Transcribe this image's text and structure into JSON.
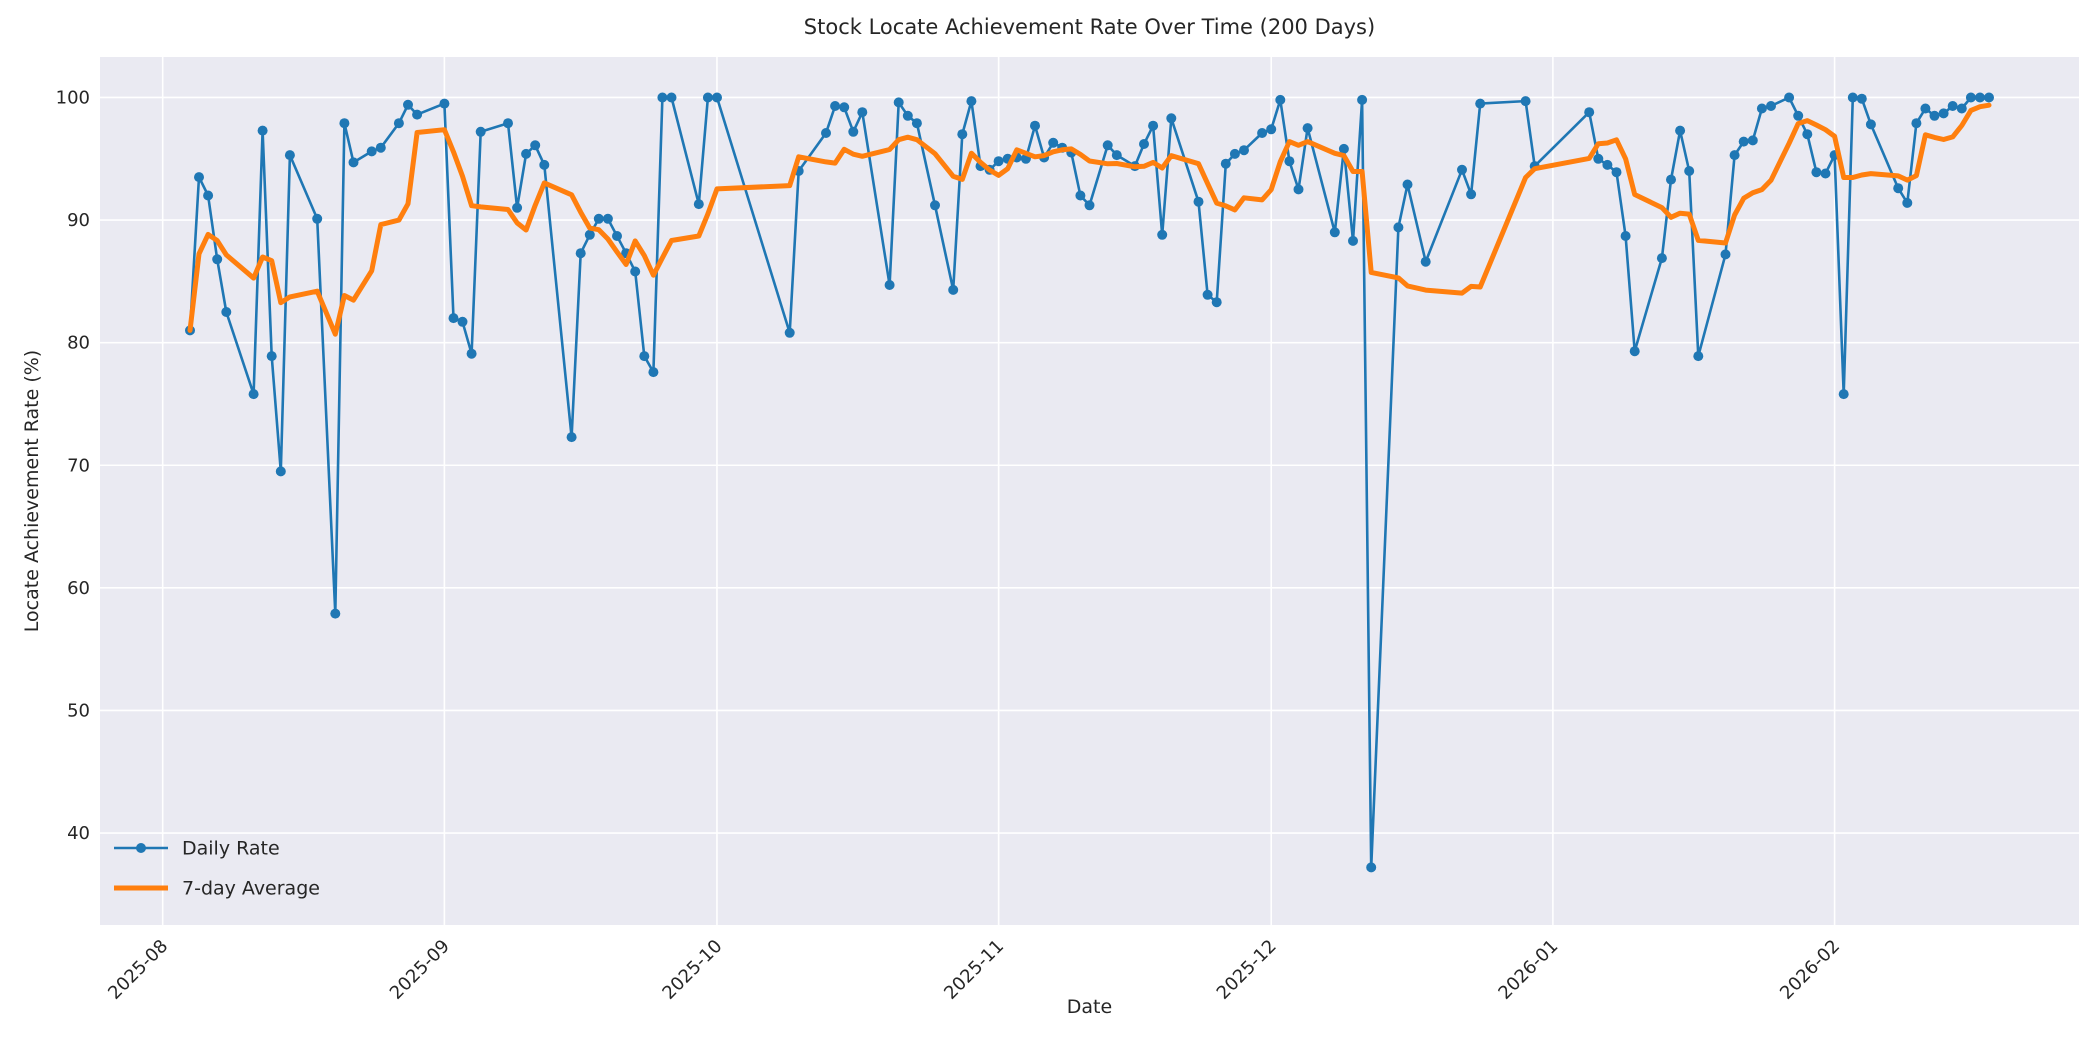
{
  "chart_data": {
    "type": "line",
    "title": "Stock Locate Achievement Rate Over Time (200 Days)",
    "xlabel": "Date",
    "ylabel": "Locate Achievement Rate (%)",
    "grid": true,
    "legend_position": "lower left",
    "plot_bg": "#eaeaf2",
    "grid_color": "#ffffff",
    "text_color": "#262626",
    "yticks": [
      40,
      50,
      60,
      70,
      80,
      90,
      100
    ],
    "ylim": [
      32.5,
      103.3
    ],
    "xtick_labels": [
      "2025-08",
      "2025-09",
      "2025-10",
      "2025-11",
      "2025-12",
      "2026-01",
      "2026-02"
    ],
    "xtick_month_starts": [
      "2025-08-01",
      "2025-09-01",
      "2025-10-01",
      "2025-11-01",
      "2025-12-01",
      "2026-01-01",
      "2026-02-01"
    ],
    "series": [
      {
        "name": "Daily Rate",
        "color": "#1f77b4",
        "marker": "circle"
      },
      {
        "name": "7-day Average",
        "color": "#ff7f0e",
        "derived": "rolling_mean",
        "window": 7
      }
    ],
    "dates": [
      "2025-08-04",
      "2025-08-05",
      "2025-08-06",
      "2025-08-07",
      "2025-08-08",
      "2025-08-11",
      "2025-08-12",
      "2025-08-13",
      "2025-08-14",
      "2025-08-15",
      "2025-08-18",
      "2025-08-20",
      "2025-08-21",
      "2025-08-22",
      "2025-08-24",
      "2025-08-25",
      "2025-08-27",
      "2025-08-28",
      "2025-08-29",
      "2025-09-01",
      "2025-09-02",
      "2025-09-03",
      "2025-09-04",
      "2025-09-05",
      "2025-09-08",
      "2025-09-09",
      "2025-09-10",
      "2025-09-11",
      "2025-09-12",
      "2025-09-15",
      "2025-09-16",
      "2025-09-17",
      "2025-09-18",
      "2025-09-19",
      "2025-09-20",
      "2025-09-21",
      "2025-09-22",
      "2025-09-23",
      "2025-09-24",
      "2025-09-25",
      "2025-09-26",
      "2025-09-29",
      "2025-09-30",
      "2025-10-01",
      "2025-10-09",
      "2025-10-10",
      "2025-10-13",
      "2025-10-14",
      "2025-10-15",
      "2025-10-16",
      "2025-10-17",
      "2025-10-20",
      "2025-10-21",
      "2025-10-22",
      "2025-10-23",
      "2025-10-25",
      "2025-10-27",
      "2025-10-28",
      "2025-10-29",
      "2025-10-30",
      "2025-10-31",
      "2025-11-01",
      "2025-11-02",
      "2025-11-03",
      "2025-11-04",
      "2025-11-05",
      "2025-11-06",
      "2025-11-07",
      "2025-11-08",
      "2025-11-09",
      "2025-11-10",
      "2025-11-11",
      "2025-11-13",
      "2025-11-14",
      "2025-11-16",
      "2025-11-17",
      "2025-11-18",
      "2025-11-19",
      "2025-11-20",
      "2025-11-23",
      "2025-11-24",
      "2025-11-25",
      "2025-11-26",
      "2025-11-27",
      "2025-11-28",
      "2025-11-30",
      "2025-12-01",
      "2025-12-02",
      "2025-12-03",
      "2025-12-04",
      "2025-12-05",
      "2025-12-08",
      "2025-12-09",
      "2025-12-10",
      "2025-12-11",
      "2025-12-12",
      "2025-12-15",
      "2025-12-16",
      "2025-12-18",
      "2025-12-22",
      "2025-12-23",
      "2025-12-24",
      "2025-12-29",
      "2025-12-30",
      "2026-01-05",
      "2026-01-06",
      "2026-01-07",
      "2026-01-08",
      "2026-01-09",
      "2026-01-10",
      "2026-01-13",
      "2026-01-14",
      "2026-01-15",
      "2026-01-16",
      "2026-01-17",
      "2026-01-20",
      "2026-01-21",
      "2026-01-22",
      "2026-01-23",
      "2026-01-24",
      "2026-01-25",
      "2026-01-27",
      "2026-01-28",
      "2026-01-29",
      "2026-01-30",
      "2026-01-31",
      "2026-02-01",
      "2026-02-02",
      "2026-02-03",
      "2026-02-04",
      "2026-02-05",
      "2026-02-08",
      "2026-02-09",
      "2026-02-10",
      "2026-02-11",
      "2026-02-12",
      "2026-02-13",
      "2026-02-14",
      "2026-02-15",
      "2026-02-16",
      "2026-02-17",
      "2026-02-18"
    ],
    "daily_values": [
      81.0,
      93.5,
      92.0,
      86.8,
      82.5,
      75.8,
      97.3,
      78.9,
      69.5,
      95.3,
      90.1,
      57.9,
      97.9,
      94.7,
      95.6,
      95.9,
      97.9,
      99.4,
      98.6,
      99.5,
      82.0,
      81.7,
      79.1,
      97.2,
      97.9,
      91.0,
      95.4,
      96.1,
      94.5,
      72.3,
      87.3,
      88.8,
      90.1,
      90.1,
      88.7,
      87.3,
      85.8,
      78.9,
      77.6,
      100.0,
      100.0,
      91.3,
      100.0,
      100.0,
      80.8,
      94.0,
      97.1,
      99.3,
      99.2,
      97.2,
      98.8,
      84.7,
      99.6,
      98.5,
      97.9,
      91.2,
      84.3,
      97.0,
      99.7,
      94.4,
      94.1,
      94.8,
      95.0,
      95.1,
      95.0,
      97.7,
      95.1,
      96.3,
      95.9,
      95.5,
      92.0,
      91.2,
      96.1,
      95.3,
      94.4,
      96.2,
      97.7,
      88.8,
      98.3,
      91.5,
      83.9,
      83.3,
      94.6,
      95.4,
      95.7,
      97.1,
      97.4,
      99.8,
      94.8,
      92.5,
      97.5,
      89.0,
      95.8,
      88.3,
      99.8,
      37.2,
      89.4,
      92.9,
      86.6,
      94.1,
      92.1,
      99.5,
      99.7,
      94.4,
      98.8,
      95.0,
      94.5,
      93.9,
      88.7,
      79.3,
      86.9,
      93.3,
      97.3,
      94.0,
      78.9,
      87.2,
      95.3,
      96.4,
      96.5,
      99.1,
      99.3,
      100.0,
      98.5,
      97.0,
      93.9,
      93.8,
      95.3,
      75.8,
      100.0,
      99.9,
      97.8,
      92.6,
      91.4,
      97.9,
      99.1,
      98.5,
      98.7,
      99.3,
      99.1,
      100.0,
      100.0,
      100.0
    ]
  }
}
